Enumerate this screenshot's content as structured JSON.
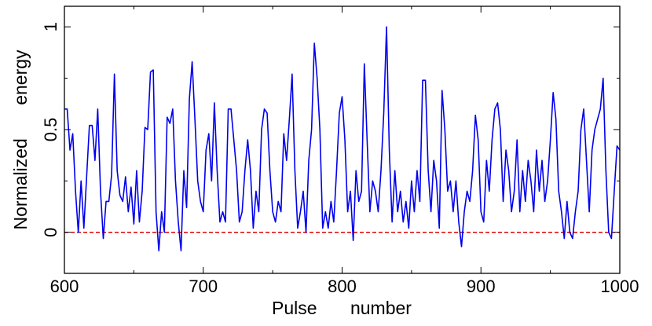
{
  "chart_data": {
    "type": "line",
    "xlabel": "Pulse number",
    "ylabel": "Normalized energy",
    "x": [
      600,
      602,
      604,
      606,
      608,
      610,
      612,
      614,
      616,
      618,
      620,
      622,
      624,
      626,
      628,
      630,
      632,
      634,
      636,
      638,
      640,
      642,
      644,
      646,
      648,
      650,
      652,
      654,
      656,
      658,
      660,
      662,
      664,
      666,
      668,
      670,
      672,
      674,
      676,
      678,
      680,
      682,
      684,
      686,
      688,
      690,
      692,
      694,
      696,
      698,
      700,
      702,
      704,
      706,
      708,
      710,
      712,
      714,
      716,
      718,
      720,
      722,
      724,
      726,
      728,
      730,
      732,
      734,
      736,
      738,
      740,
      742,
      744,
      746,
      748,
      750,
      752,
      754,
      756,
      758,
      760,
      762,
      764,
      766,
      768,
      770,
      772,
      774,
      776,
      778,
      780,
      782,
      784,
      786,
      788,
      790,
      792,
      794,
      796,
      798,
      800,
      802,
      804,
      806,
      808,
      810,
      812,
      814,
      816,
      818,
      820,
      822,
      824,
      826,
      828,
      830,
      832,
      834,
      836,
      838,
      840,
      842,
      844,
      846,
      848,
      850,
      852,
      854,
      856,
      858,
      860,
      862,
      864,
      866,
      868,
      870,
      872,
      874,
      876,
      878,
      880,
      882,
      884,
      886,
      888,
      890,
      892,
      894,
      896,
      898,
      900,
      902,
      904,
      906,
      908,
      910,
      912,
      914,
      916,
      918,
      920,
      922,
      924,
      926,
      928,
      930,
      932,
      934,
      936,
      938,
      940,
      942,
      944,
      946,
      948,
      950,
      952,
      954,
      956,
      958,
      960,
      962,
      964,
      966,
      968,
      970,
      972,
      974,
      976,
      978,
      980,
      982,
      984,
      986,
      988,
      990,
      992,
      994,
      996,
      998,
      1000
    ],
    "series": [
      {
        "name": "energy",
        "color": "#0000ee",
        "values": [
          0.6,
          0.6,
          0.4,
          0.48,
          0.2,
          0.0,
          0.25,
          0.02,
          0.27,
          0.52,
          0.52,
          0.35,
          0.6,
          0.2,
          -0.03,
          0.15,
          0.15,
          0.28,
          0.77,
          0.3,
          0.18,
          0.15,
          0.27,
          0.1,
          0.22,
          0.04,
          0.3,
          0.05,
          0.2,
          0.51,
          0.5,
          0.78,
          0.79,
          0.1,
          -0.09,
          0.1,
          0.0,
          0.56,
          0.53,
          0.6,
          0.25,
          0.05,
          -0.09,
          0.3,
          0.12,
          0.65,
          0.83,
          0.55,
          0.25,
          0.15,
          0.1,
          0.4,
          0.48,
          0.25,
          0.63,
          0.3,
          0.05,
          0.1,
          0.05,
          0.6,
          0.6,
          0.45,
          0.3,
          0.05,
          0.1,
          0.3,
          0.45,
          0.3,
          0.02,
          0.2,
          0.1,
          0.5,
          0.6,
          0.58,
          0.3,
          0.1,
          0.05,
          0.15,
          0.1,
          0.48,
          0.35,
          0.55,
          0.77,
          0.3,
          0.02,
          0.1,
          0.2,
          0.0,
          0.35,
          0.5,
          0.92,
          0.75,
          0.5,
          0.02,
          0.1,
          0.02,
          0.15,
          0.05,
          0.3,
          0.58,
          0.66,
          0.45,
          0.1,
          0.2,
          -0.04,
          0.3,
          0.15,
          0.2,
          0.82,
          0.45,
          0.1,
          0.25,
          0.2,
          0.1,
          0.3,
          0.58,
          1.0,
          0.4,
          0.05,
          0.3,
          0.1,
          0.2,
          0.05,
          0.15,
          0.02,
          0.25,
          0.1,
          0.3,
          0.15,
          0.74,
          0.74,
          0.3,
          0.1,
          0.35,
          0.25,
          0.02,
          0.69,
          0.5,
          0.2,
          0.25,
          0.1,
          0.25,
          0.05,
          -0.07,
          0.1,
          0.2,
          0.15,
          0.3,
          0.57,
          0.45,
          0.1,
          0.05,
          0.35,
          0.2,
          0.45,
          0.6,
          0.63,
          0.5,
          0.15,
          0.4,
          0.3,
          0.1,
          0.2,
          0.45,
          0.1,
          0.3,
          0.15,
          0.35,
          0.25,
          0.1,
          0.4,
          0.2,
          0.35,
          0.15,
          0.25,
          0.45,
          0.68,
          0.55,
          0.2,
          0.1,
          -0.03,
          0.15,
          0.0,
          -0.03,
          0.1,
          0.2,
          0.5,
          0.6,
          0.35,
          0.1,
          0.4,
          0.5,
          0.55,
          0.6,
          0.75,
          0.3,
          0.0,
          -0.03,
          0.2,
          0.42,
          0.4
        ]
      }
    ],
    "reference_line": {
      "value": 0,
      "color": "#dd0000"
    },
    "xlim": [
      600,
      1000
    ],
    "xticks": [
      600,
      700,
      800,
      900,
      1000
    ],
    "xticks_minor": [
      650,
      750,
      850,
      950
    ],
    "ylim": [
      -0.2,
      1.1
    ],
    "yticks": [
      0,
      0.5,
      1
    ],
    "yticks_minor": [
      0.25,
      0.75
    ],
    "grid": false
  }
}
